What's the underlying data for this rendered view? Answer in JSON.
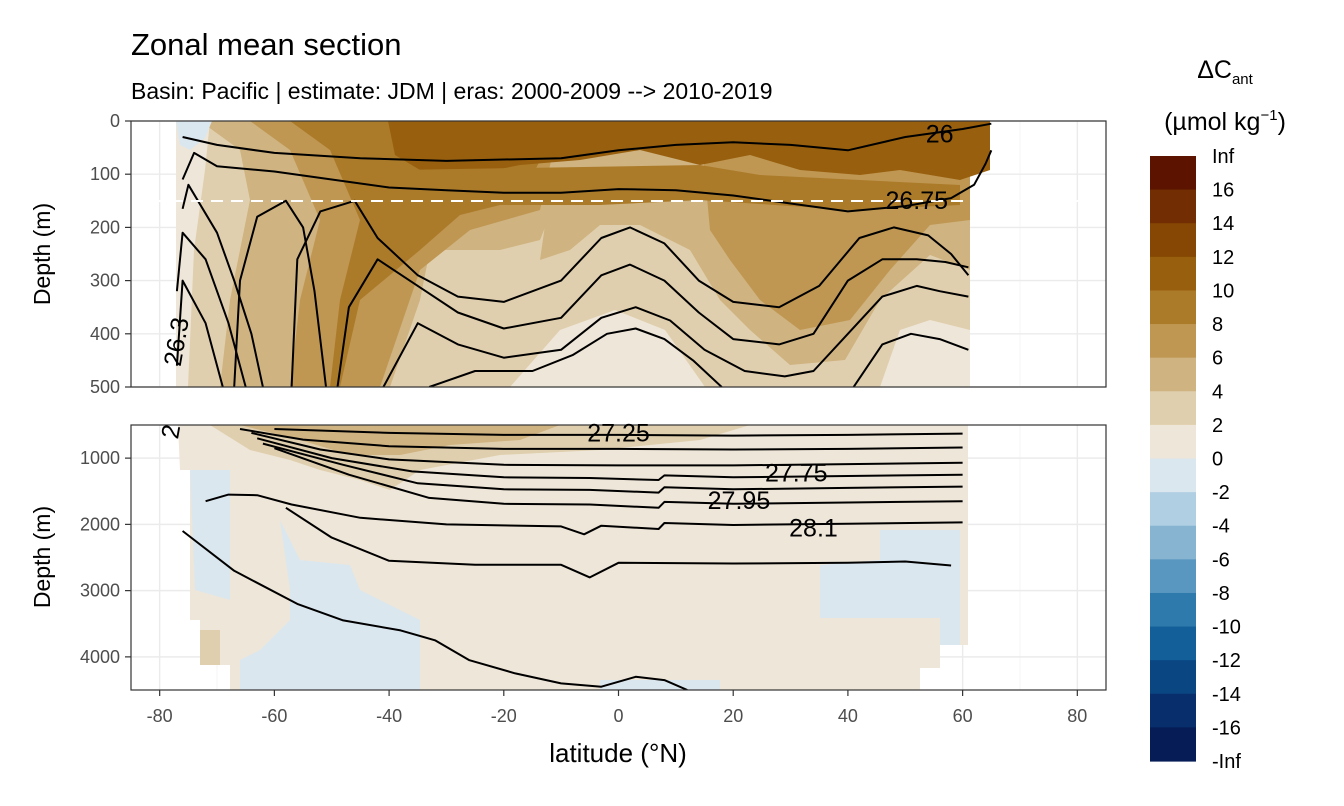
{
  "chart_data": {
    "type": "heatmap",
    "title": "Zonal mean section",
    "subtitle": "Basin: Pacific | estimate: JDM  | eras: 2000-2009 --> 2010-2019",
    "xlabel": "latitude (°N)",
    "ylabel": "Depth (m)",
    "xlim": [
      -85,
      85
    ],
    "x_ticks": [
      "-80",
      "-60",
      "-40",
      "-20",
      "0",
      "20",
      "40",
      "60",
      "80"
    ],
    "panels": [
      {
        "name": "upper",
        "ylim": [
          0,
          500
        ],
        "y_ticks": [
          "0",
          "100",
          "200",
          "300",
          "400",
          "500"
        ],
        "reference_depth": 150
      },
      {
        "name": "lower",
        "ylim": [
          500,
          4500
        ],
        "y_ticks": [
          "1000",
          "2000",
          "3000",
          "4000"
        ]
      }
    ],
    "legend": {
      "title_main": "ΔC",
      "title_sub": "ant",
      "units_main": "(µmol kg",
      "units_sup": "−1",
      "units_end": ")",
      "placement": "right",
      "labels": [
        "Inf",
        "16",
        "14",
        "12",
        "10",
        "8",
        "6",
        "4",
        "2",
        "0",
        "-2",
        "-4",
        "-6",
        "-8",
        "-10",
        "-12",
        "-14",
        "-16",
        "-Inf"
      ],
      "colors": [
        "#5c1400",
        "#722d02",
        "#854703",
        "#98600e",
        "#ab7b2a",
        "#bf9752",
        "#cfb381",
        "#e0cfae",
        "#eee6d8",
        "#dbe7ef",
        "#b1cfe2",
        "#86b4d1",
        "#5a97c0",
        "#2e7aad",
        "#125f99",
        "#0a4682",
        "#082f6b",
        "#061c57"
      ]
    },
    "isopycnal_labels": [
      {
        "text": "26",
        "lat": 56,
        "depth": 25
      },
      {
        "text": "26.75",
        "lat": 52,
        "depth": 150
      },
      {
        "text": "26.3",
        "lat": -77,
        "depth": 415
      },
      {
        "text": "27.25",
        "lat": 0,
        "depth": 630
      },
      {
        "text": "27.75",
        "lat": 31,
        "depth": 1230
      },
      {
        "text": "27.95",
        "lat": 21,
        "depth": 1650
      },
      {
        "text": "28.1",
        "lat": 34,
        "depth": 2060
      },
      {
        "text": "2",
        "lat": -78,
        "depth": 600
      }
    ],
    "isopycnals_upper": [
      [
        [
          -76,
          30
        ],
        [
          -70,
          45
        ],
        [
          -60,
          60
        ],
        [
          -45,
          70
        ],
        [
          -30,
          75
        ],
        [
          -10,
          70
        ],
        [
          0,
          55
        ],
        [
          10,
          45
        ],
        [
          20,
          40
        ],
        [
          30,
          45
        ],
        [
          40,
          55
        ],
        [
          50,
          30
        ],
        [
          60,
          15
        ],
        [
          65,
          5
        ]
      ],
      [
        [
          -76,
          110
        ],
        [
          -74,
          60
        ],
        [
          -70,
          85
        ],
        [
          -60,
          95
        ],
        [
          -50,
          110
        ],
        [
          -40,
          125
        ],
        [
          -30,
          130
        ],
        [
          -20,
          135
        ],
        [
          -10,
          135
        ],
        [
          0,
          128
        ],
        [
          10,
          130
        ],
        [
          20,
          140
        ],
        [
          30,
          155
        ],
        [
          40,
          170
        ],
        [
          50,
          160
        ],
        [
          58,
          145
        ],
        [
          62,
          120
        ],
        [
          64,
          80
        ],
        [
          65,
          55
        ]
      ],
      [
        [
          -76,
          165
        ],
        [
          -75,
          120
        ],
        [
          -70,
          210
        ],
        [
          -67,
          300
        ],
        [
          -64,
          400
        ],
        [
          -62,
          500
        ]
      ],
      [
        [
          -77,
          320
        ],
        [
          -76,
          210
        ],
        [
          -72,
          260
        ],
        [
          -68,
          380
        ],
        [
          -65,
          500
        ]
      ],
      [
        [
          -77,
          460
        ],
        [
          -76,
          300
        ],
        [
          -72,
          380
        ],
        [
          -69,
          500
        ]
      ],
      [
        [
          -67,
          500
        ],
        [
          -66,
          300
        ],
        [
          -63,
          180
        ],
        [
          -58,
          150
        ],
        [
          -55,
          200
        ],
        [
          -53,
          320
        ],
        [
          -51,
          500
        ]
      ],
      [
        [
          -57,
          500
        ],
        [
          -56,
          260
        ],
        [
          -52,
          170
        ],
        [
          -46,
          150
        ],
        [
          -42,
          220
        ],
        [
          -35,
          290
        ],
        [
          -28,
          330
        ],
        [
          -20,
          340
        ],
        [
          -10,
          300
        ],
        [
          -3,
          220
        ],
        [
          2,
          200
        ],
        [
          8,
          230
        ],
        [
          14,
          300
        ],
        [
          20,
          340
        ],
        [
          28,
          350
        ],
        [
          35,
          310
        ],
        [
          42,
          220
        ],
        [
          48,
          200
        ],
        [
          54,
          215
        ],
        [
          58,
          250
        ],
        [
          61,
          290
        ]
      ],
      [
        [
          -49,
          500
        ],
        [
          -47,
          350
        ],
        [
          -42,
          260
        ],
        [
          -35,
          310
        ],
        [
          -28,
          360
        ],
        [
          -20,
          390
        ],
        [
          -10,
          370
        ],
        [
          -3,
          290
        ],
        [
          2,
          270
        ],
        [
          8,
          300
        ],
        [
          14,
          360
        ],
        [
          20,
          410
        ],
        [
          28,
          420
        ],
        [
          34,
          400
        ],
        [
          40,
          300
        ],
        [
          46,
          260
        ],
        [
          52,
          260
        ],
        [
          57,
          265
        ],
        [
          61,
          275
        ]
      ],
      [
        [
          -41,
          500
        ],
        [
          -35,
          380
        ],
        [
          -28,
          420
        ],
        [
          -20,
          445
        ],
        [
          -10,
          430
        ],
        [
          -3,
          370
        ],
        [
          3,
          350
        ],
        [
          9,
          375
        ],
        [
          15,
          430
        ],
        [
          22,
          470
        ],
        [
          29,
          480
        ],
        [
          34,
          470
        ],
        [
          40,
          400
        ],
        [
          46,
          330
        ],
        [
          52,
          310
        ],
        [
          56,
          320
        ],
        [
          61,
          330
        ]
      ],
      [
        [
          -33,
          500
        ],
        [
          -25,
          470
        ],
        [
          -15,
          470
        ],
        [
          -8,
          440
        ],
        [
          -2,
          400
        ],
        [
          3,
          390
        ],
        [
          8,
          410
        ],
        [
          13,
          450
        ],
        [
          18,
          500
        ]
      ],
      [
        [
          41,
          500
        ],
        [
          46,
          420
        ],
        [
          51,
          400
        ],
        [
          56,
          410
        ],
        [
          61,
          430
        ]
      ]
    ],
    "isopycnals_lower": [
      [
        [
          -60,
          560
        ],
        [
          -40,
          620
        ],
        [
          -20,
          650
        ],
        [
          0,
          650
        ],
        [
          20,
          660
        ],
        [
          40,
          650
        ],
        [
          60,
          630
        ]
      ],
      [
        [
          -66,
          560
        ],
        [
          -55,
          720
        ],
        [
          -40,
          820
        ],
        [
          -20,
          860
        ],
        [
          0,
          860
        ],
        [
          20,
          870
        ],
        [
          40,
          860
        ],
        [
          60,
          840
        ]
      ],
      [
        [
          -64,
          620
        ],
        [
          -52,
          870
        ],
        [
          -40,
          1020
        ],
        [
          -20,
          1100
        ],
        [
          0,
          1110
        ],
        [
          20,
          1110
        ],
        [
          40,
          1090
        ],
        [
          60,
          1070
        ]
      ],
      [
        [
          -63,
          700
        ],
        [
          -50,
          1000
        ],
        [
          -36,
          1200
        ],
        [
          -20,
          1290
        ],
        [
          -5,
          1300
        ],
        [
          7,
          1330
        ],
        [
          8,
          1260
        ],
        [
          20,
          1290
        ],
        [
          40,
          1270
        ],
        [
          60,
          1250
        ]
      ],
      [
        [
          -62,
          780
        ],
        [
          -48,
          1100
        ],
        [
          -35,
          1380
        ],
        [
          -20,
          1470
        ],
        [
          -5,
          1480
        ],
        [
          7,
          1520
        ],
        [
          8,
          1440
        ],
        [
          20,
          1470
        ],
        [
          40,
          1450
        ],
        [
          60,
          1430
        ]
      ],
      [
        [
          -60,
          850
        ],
        [
          -47,
          1250
        ],
        [
          -33,
          1600
        ],
        [
          -20,
          1690
        ],
        [
          -5,
          1700
        ],
        [
          7,
          1750
        ],
        [
          8,
          1660
        ],
        [
          20,
          1690
        ],
        [
          40,
          1670
        ],
        [
          60,
          1650
        ]
      ],
      [
        [
          -72,
          1650
        ],
        [
          -68,
          1550
        ],
        [
          -63,
          1560
        ],
        [
          -57,
          1700
        ],
        [
          -45,
          1900
        ],
        [
          -30,
          2000
        ],
        [
          -10,
          2030
        ],
        [
          -6,
          2150
        ],
        [
          -3,
          2020
        ],
        [
          7,
          2070
        ],
        [
          8,
          1980
        ],
        [
          20,
          2010
        ],
        [
          40,
          1990
        ],
        [
          60,
          1970
        ]
      ],
      [
        [
          -58,
          1750
        ],
        [
          -50,
          2200
        ],
        [
          -40,
          2550
        ],
        [
          -25,
          2610
        ],
        [
          -10,
          2610
        ],
        [
          -5,
          2800
        ],
        [
          0,
          2580
        ],
        [
          20,
          2590
        ],
        [
          40,
          2580
        ],
        [
          50,
          2560
        ],
        [
          58,
          2620
        ]
      ],
      [
        [
          -76,
          2100
        ],
        [
          -67,
          2700
        ],
        [
          -56,
          3200
        ],
        [
          -48,
          3450
        ],
        [
          -38,
          3600
        ],
        [
          -32,
          3750
        ],
        [
          -26,
          4050
        ],
        [
          -18,
          4250
        ],
        [
          -10,
          4400
        ],
        [
          -3,
          4450
        ],
        [
          3,
          4300
        ],
        [
          8,
          4350
        ],
        [
          12,
          4500
        ]
      ]
    ]
  }
}
